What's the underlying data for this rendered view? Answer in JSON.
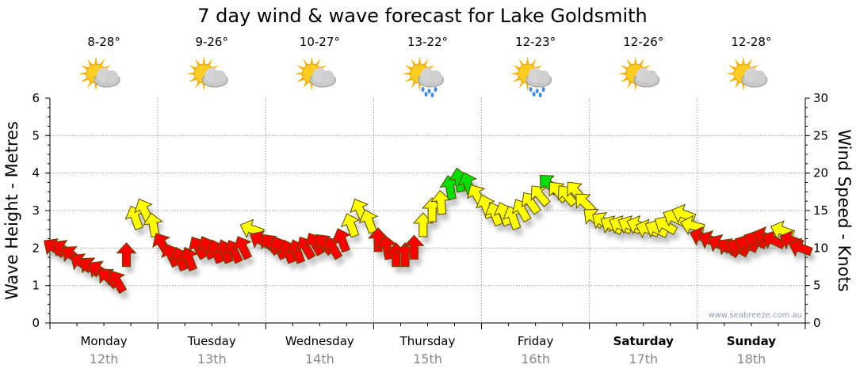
{
  "chart_data": {
    "type": "scatter",
    "title": "7 day wind & wave forecast for Lake Goldsmith",
    "ylabel_left": "Wave Height - Metres",
    "ylabel_right": "Wind Speed - Knots",
    "ylim_left": [
      0,
      6
    ],
    "ylim_right": [
      0,
      30
    ],
    "yticks_left": [
      "0",
      "1",
      "2",
      "3",
      "4",
      "5",
      "6"
    ],
    "yticks_right": [
      "0",
      "5",
      "10",
      "15",
      "20",
      "25",
      "30"
    ],
    "grid": true,
    "watermark": "www.seabreeze.com.au",
    "color_thresholds": {
      "red_below": 12,
      "green_from": 18
    },
    "colors": {
      "low": "#ff0000",
      "mid": "#ffff00",
      "high": "#00e000"
    },
    "days": [
      {
        "name": "Monday",
        "date": "12th",
        "temp": "8-28°",
        "icon": "partly-cloudy-icon",
        "bold": false,
        "wind_knots": [
          10,
          9.8,
          9,
          8,
          7.5,
          7,
          6,
          5.5,
          9,
          14,
          15,
          13
        ],
        "arrow_heading_deg": [
          -55,
          -55,
          -50,
          -55,
          -50,
          -55,
          -45,
          -30,
          0,
          -20,
          -25,
          -10
        ]
      },
      {
        "name": "Tuesday",
        "date": "13th",
        "temp": "9-26°",
        "icon": "partly-cloudy-icon",
        "bold": false,
        "wind_knots": [
          10.5,
          9,
          8.5,
          8.5,
          10,
          10,
          9.5,
          9.5,
          9.5,
          10,
          12.5,
          11
        ],
        "arrow_heading_deg": [
          -30,
          -25,
          -20,
          -20,
          -30,
          -25,
          -20,
          -20,
          -25,
          -25,
          -70,
          -60
        ]
      },
      {
        "name": "Wednesday",
        "date": "14th",
        "temp": "10-27°",
        "icon": "partly-cloudy-icon",
        "bold": false,
        "wind_knots": [
          10.5,
          10,
          9.5,
          9.5,
          10,
          10.5,
          10.5,
          10,
          11,
          13,
          15,
          13.5
        ],
        "arrow_heading_deg": [
          -40,
          -25,
          -20,
          -20,
          -30,
          -30,
          -40,
          -30,
          -20,
          -20,
          -25,
          -20
        ]
      },
      {
        "name": "Thursday",
        "date": "15th",
        "temp": "13-22°",
        "icon": "rain-icon",
        "bold": false,
        "wind_knots": [
          11,
          10,
          9,
          9,
          10,
          13,
          15,
          16,
          18,
          19,
          18.5,
          17
        ],
        "arrow_heading_deg": [
          0,
          -10,
          0,
          0,
          0,
          0,
          0,
          -5,
          -10,
          -10,
          -20,
          -30
        ]
      },
      {
        "name": "Friday",
        "date": "16th",
        "temp": "12-23°",
        "icon": "rain-icon",
        "bold": false,
        "wind_knots": [
          15.5,
          14.5,
          14.5,
          14,
          15,
          16,
          17,
          18.5,
          17.5,
          17,
          17.5,
          16
        ],
        "arrow_heading_deg": [
          -20,
          -20,
          -20,
          -20,
          -30,
          -35,
          -40,
          -45,
          -40,
          -40,
          -40,
          -45
        ]
      },
      {
        "name": "Saturday",
        "date": "17th",
        "temp": "12-26°",
        "icon": "partly-cloudy-icon",
        "bold": true,
        "wind_knots": [
          14,
          13.5,
          13,
          13,
          13,
          13,
          12.5,
          12.5,
          13,
          14,
          14.5,
          13
        ],
        "arrow_heading_deg": [
          -50,
          -55,
          -60,
          -65,
          -65,
          -70,
          -70,
          -65,
          -60,
          -65,
          -70,
          -75
        ]
      },
      {
        "name": "Sunday",
        "date": "18th",
        "temp": "12-28°",
        "icon": "partly-cloudy-icon",
        "bold": true,
        "wind_knots": [
          11.5,
          11,
          10.5,
          10,
          10,
          10.5,
          11,
          11.5,
          11,
          12.3,
          11,
          10
        ],
        "arrow_heading_deg": [
          -70,
          -65,
          -60,
          -55,
          -60,
          -65,
          -65,
          -70,
          -65,
          -70,
          -70,
          -70
        ]
      }
    ]
  }
}
